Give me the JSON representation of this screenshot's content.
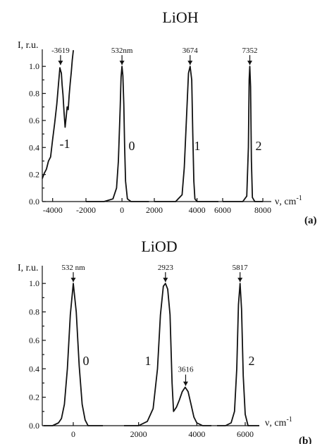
{
  "chart_data": [
    {
      "type": "line",
      "title": "LiOH",
      "panel_label": "(a)",
      "ylabel": "I, r.u.",
      "xlabel_prefix": "ν, cm",
      "xlabel_sup": "-1",
      "ylim": [
        0,
        1.1
      ],
      "yticks": [
        "0.0",
        "0.2",
        "0.4",
        "0.6",
        "0.8",
        "1.0"
      ],
      "xticks": [
        "-4000",
        "-2000",
        "0",
        "2000",
        "4000",
        "6000",
        "8000"
      ],
      "series": [
        {
          "order_label": "-1",
          "peak_label": "-3619",
          "peak_x": -3619,
          "x": [
            -4500,
            -4400,
            -4300,
            -4200,
            -4100,
            -4000,
            -3900,
            -3800,
            -3700,
            -3650,
            -3619,
            -3580,
            -3540,
            -3500,
            -3450,
            -3400,
            -3350,
            -3300,
            -3250,
            -3200,
            -3150,
            -3100,
            -3050,
            -3000
          ],
          "y": [
            0.17,
            0.21,
            0.24,
            0.3,
            0.33,
            0.46,
            0.58,
            0.72,
            0.9,
            0.99,
            0.97,
            0.95,
            0.86,
            0.79,
            0.66,
            0.55,
            0.62,
            0.7,
            0.68,
            0.79,
            0.88,
            0.96,
            1.05,
            1.12
          ]
        },
        {
          "order_label": "0",
          "peak_label": "532nm",
          "peak_x": 0,
          "x": [
            -2000,
            -1500,
            -1000,
            -500,
            -300,
            -200,
            -100,
            -50,
            0,
            50,
            100,
            150,
            200,
            300,
            500,
            1000,
            1500
          ],
          "y": [
            0.0,
            0.0,
            0.0,
            0.02,
            0.1,
            0.3,
            0.7,
            0.92,
            1.0,
            0.93,
            0.72,
            0.4,
            0.15,
            0.02,
            0.0,
            0.0,
            0.0
          ]
        },
        {
          "order_label": "1",
          "peak_label": "3674",
          "peak_x": 3674,
          "x": [
            2000,
            2500,
            3000,
            3300,
            3400,
            3500,
            3600,
            3674,
            3750,
            3800,
            3850,
            3900,
            4000,
            4500,
            5000
          ],
          "y": [
            0.0,
            0.0,
            0.0,
            0.05,
            0.25,
            0.6,
            0.95,
            1.0,
            0.9,
            0.5,
            0.15,
            0.02,
            0.0,
            0.0,
            0.0
          ]
        },
        {
          "order_label": "2",
          "peak_label": "7352",
          "peak_x": 7352,
          "x": [
            6000,
            6500,
            7000,
            7200,
            7280,
            7320,
            7352,
            7390,
            7430,
            7480,
            7600,
            8000
          ],
          "y": [
            0.0,
            0.0,
            0.0,
            0.04,
            0.4,
            0.9,
            1.0,
            0.85,
            0.3,
            0.03,
            0.0,
            0.0
          ]
        }
      ]
    },
    {
      "type": "line",
      "title": "LiOD",
      "panel_label": "(b)",
      "ylabel": "I, r.u.",
      "xlabel_prefix": "ν, cm",
      "xlabel_sup": "-1",
      "ylim": [
        0,
        1.1
      ],
      "yticks": [
        "0.0",
        "0.2",
        "0.4",
        "0.6",
        "0.8",
        "1.0"
      ],
      "xticks": [
        "0",
        "2000",
        "4000",
        "6000"
      ],
      "series": [
        {
          "order_label": "0",
          "peak_label": "532 nm",
          "peak_x": 0,
          "x": [
            -1000,
            -700,
            -500,
            -400,
            -300,
            -200,
            -100,
            0,
            100,
            200,
            300,
            400,
            500,
            700,
            1000
          ],
          "y": [
            0.0,
            0.0,
            0.02,
            0.05,
            0.15,
            0.4,
            0.78,
            1.0,
            0.8,
            0.42,
            0.15,
            0.04,
            0.0,
            0.0,
            0.0
          ]
        },
        {
          "order_label": "1",
          "peak_label": "2923",
          "peak_x": 2923,
          "peak2_label": "3616",
          "peak2_x": 3616,
          "peak2_y": 0.27,
          "x": [
            1500,
            2000,
            2300,
            2500,
            2650,
            2750,
            2850,
            2923,
            3000,
            3080,
            3150,
            3200,
            3300,
            3400,
            3500,
            3600,
            3700,
            3800,
            3900,
            4000,
            4200,
            4500
          ],
          "y": [
            0.0,
            0.0,
            0.03,
            0.12,
            0.4,
            0.78,
            0.98,
            1.0,
            0.96,
            0.78,
            0.3,
            0.1,
            0.13,
            0.18,
            0.24,
            0.27,
            0.24,
            0.15,
            0.06,
            0.02,
            0.0,
            0.0
          ]
        },
        {
          "order_label": "2",
          "peak_label": "5817",
          "peak_x": 5817,
          "x": [
            5000,
            5300,
            5500,
            5620,
            5700,
            5760,
            5817,
            5870,
            5930,
            6000,
            6100,
            6300,
            6500
          ],
          "y": [
            0.0,
            0.0,
            0.02,
            0.1,
            0.4,
            0.85,
            1.0,
            0.82,
            0.35,
            0.08,
            0.0,
            0.0,
            0.0
          ]
        }
      ]
    }
  ]
}
